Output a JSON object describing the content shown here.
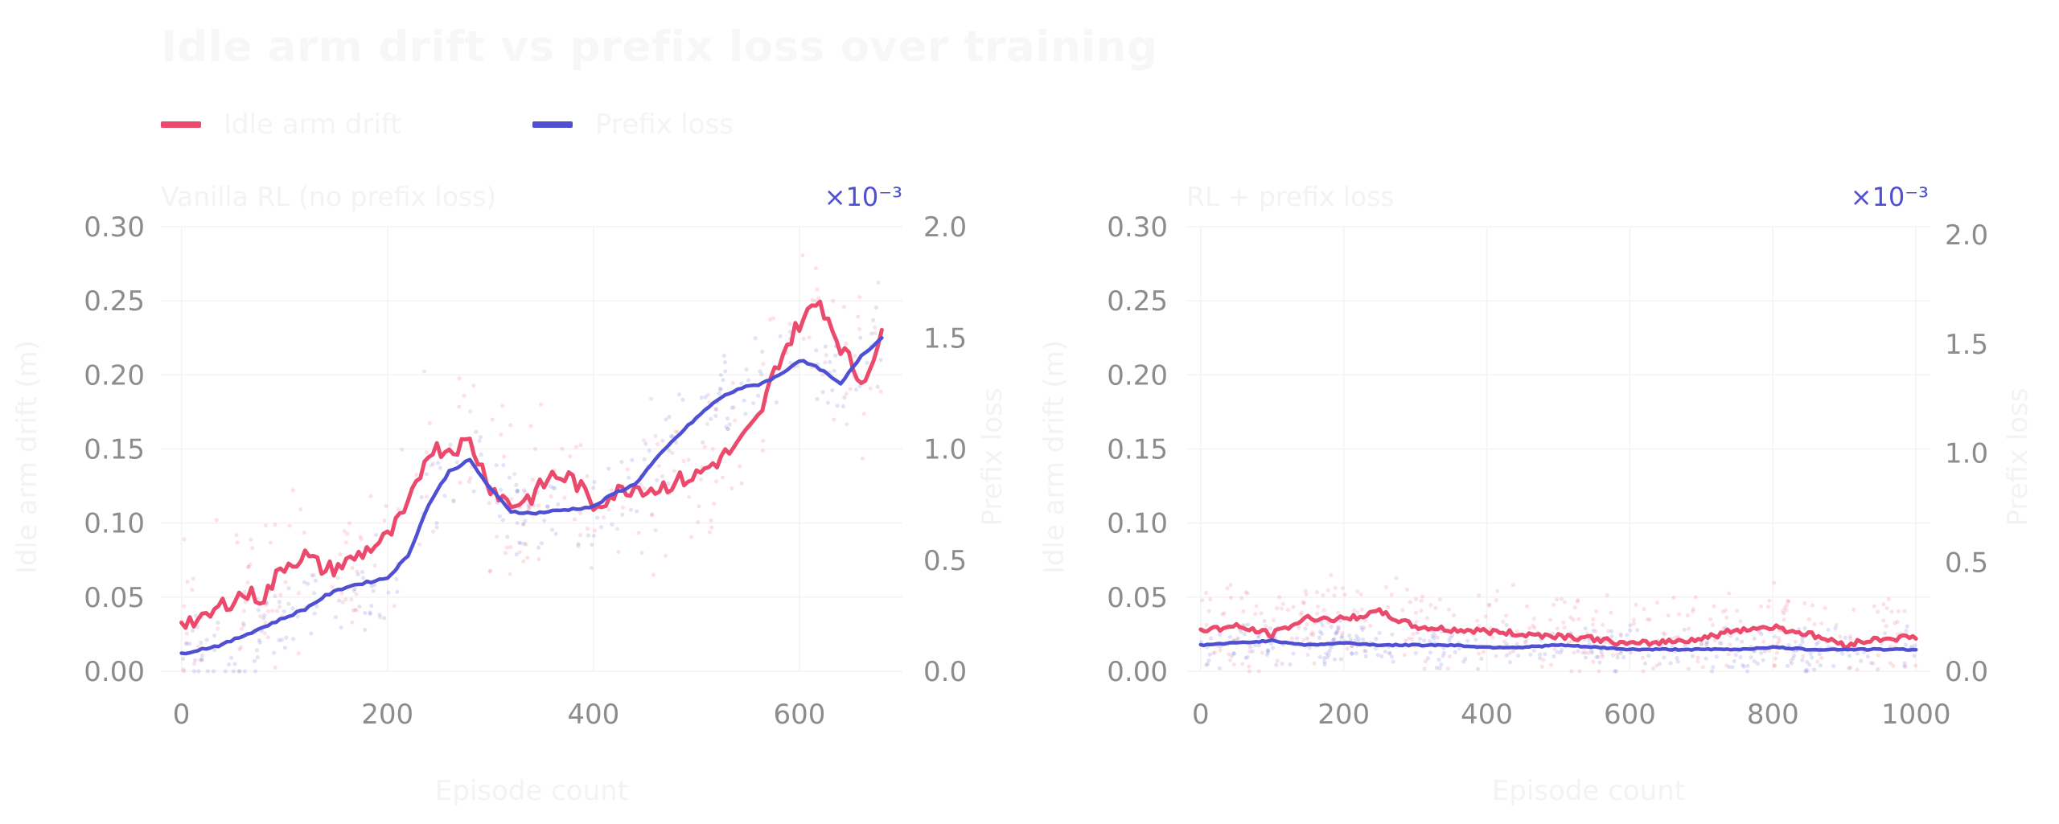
{
  "colors": {
    "drift": "#ec4a6c",
    "prefix": "#4f4fd3",
    "tick": "#8c8c8c",
    "grid": "#f3f3f3",
    "faint_text": "#f3f3f5"
  },
  "figure": {
    "title": "Idle arm drift vs prefix loss over training",
    "legend": [
      "Idle arm drift",
      "Prefix loss"
    ]
  },
  "chart_data": [
    {
      "type": "line",
      "subtitle": "Vanilla RL (no prefix loss)",
      "xlabel": "Episode count",
      "ylabel": "Idle arm drift (m)",
      "ylabel_right": "Prefix loss",
      "right_axis_multiplier": "×10⁻³",
      "xlim": [
        -20,
        700
      ],
      "ylim": [
        0,
        0.3
      ],
      "ylim_right": [
        0,
        2.0
      ],
      "xticks": [
        "0",
        "200",
        "400",
        "600"
      ],
      "yticks": [
        "0.00",
        "0.05",
        "0.10",
        "0.15",
        "0.20",
        "0.25",
        "0.30"
      ],
      "yticks_right": [
        "0.0",
        "0.5",
        "1.0",
        "1.5",
        "2.0"
      ],
      "grid": true,
      "series": [
        {
          "name": "Idle arm drift",
          "axis": "left",
          "x": [
            0,
            20,
            40,
            60,
            80,
            100,
            120,
            140,
            160,
            180,
            200,
            220,
            240,
            260,
            280,
            300,
            320,
            340,
            360,
            380,
            400,
            420,
            440,
            460,
            480,
            500,
            520,
            540,
            560,
            580,
            600,
            620,
            640,
            660,
            680
          ],
          "y": [
            0.035,
            0.033,
            0.045,
            0.052,
            0.05,
            0.072,
            0.078,
            0.068,
            0.073,
            0.082,
            0.09,
            0.11,
            0.15,
            0.15,
            0.155,
            0.125,
            0.112,
            0.118,
            0.132,
            0.13,
            0.112,
            0.12,
            0.125,
            0.123,
            0.128,
            0.132,
            0.142,
            0.152,
            0.17,
            0.21,
            0.235,
            0.25,
            0.22,
            0.195,
            0.225
          ]
        },
        {
          "name": "Prefix loss",
          "axis": "right",
          "x": [
            0,
            20,
            40,
            60,
            80,
            100,
            120,
            140,
            160,
            180,
            200,
            220,
            240,
            260,
            280,
            300,
            320,
            340,
            360,
            380,
            400,
            420,
            440,
            460,
            480,
            500,
            520,
            540,
            560,
            580,
            600,
            620,
            640,
            660,
            680
          ],
          "y": [
            0.08,
            0.1,
            0.12,
            0.16,
            0.2,
            0.24,
            0.28,
            0.34,
            0.38,
            0.4,
            0.42,
            0.52,
            0.75,
            0.9,
            0.95,
            0.82,
            0.72,
            0.71,
            0.72,
            0.73,
            0.74,
            0.8,
            0.84,
            0.95,
            1.05,
            1.14,
            1.22,
            1.27,
            1.29,
            1.33,
            1.4,
            1.36,
            1.29,
            1.42,
            1.5
          ]
        }
      ]
    },
    {
      "type": "line",
      "subtitle": "RL + prefix loss",
      "xlabel": "Episode count",
      "ylabel": "Idle arm drift (m)",
      "ylabel_right": "Prefix loss",
      "right_axis_multiplier": "×10⁻³",
      "xlim": [
        -20,
        1020
      ],
      "ylim": [
        0,
        0.3
      ],
      "ylim_right": [
        0,
        2.0
      ],
      "xticks": [
        "0",
        "200",
        "400",
        "600",
        "800",
        "1000"
      ],
      "yticks": [
        "0.00",
        "0.05",
        "0.10",
        "0.15",
        "0.20",
        "0.25",
        "0.30"
      ],
      "yticks_right": [
        "0.0",
        "0.5",
        "1.0",
        "1.5",
        "2.0"
      ],
      "grid": true,
      "series": [
        {
          "name": "Idle arm drift",
          "axis": "left",
          "x": [
            0,
            50,
            100,
            150,
            200,
            250,
            300,
            350,
            400,
            450,
            500,
            550,
            600,
            650,
            700,
            750,
            800,
            850,
            900,
            950,
            1000
          ],
          "y": [
            0.028,
            0.03,
            0.025,
            0.036,
            0.035,
            0.04,
            0.03,
            0.028,
            0.027,
            0.025,
            0.024,
            0.022,
            0.018,
            0.02,
            0.022,
            0.028,
            0.03,
            0.025,
            0.018,
            0.022,
            0.023
          ]
        },
        {
          "name": "Prefix loss",
          "axis": "right",
          "x": [
            0,
            50,
            100,
            150,
            200,
            250,
            300,
            350,
            400,
            450,
            500,
            550,
            600,
            650,
            700,
            750,
            800,
            850,
            900,
            950,
            1000
          ],
          "y": [
            0.12,
            0.13,
            0.14,
            0.12,
            0.13,
            0.12,
            0.12,
            0.12,
            0.11,
            0.11,
            0.12,
            0.11,
            0.1,
            0.1,
            0.1,
            0.1,
            0.11,
            0.1,
            0.1,
            0.1,
            0.1
          ]
        }
      ]
    }
  ]
}
